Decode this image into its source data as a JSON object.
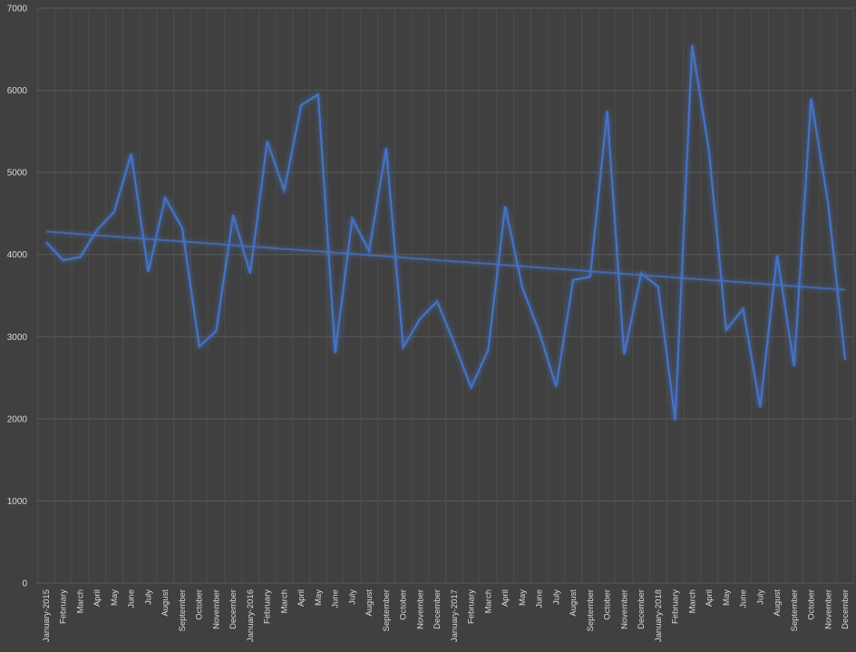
{
  "chart_data": {
    "type": "line",
    "title": "",
    "xlabel": "",
    "ylabel": "",
    "ylim": [
      0,
      7000
    ],
    "yticks": [
      0,
      1000,
      2000,
      3000,
      4000,
      5000,
      6000,
      7000
    ],
    "grid": "vertical and horizontal",
    "legend": "none",
    "categories": [
      "January-2015",
      "February",
      "March",
      "April",
      "May",
      "June",
      "July",
      "August",
      "September",
      "October",
      "November",
      "December",
      "January-2016",
      "February",
      "March",
      "April",
      "May",
      "June",
      "July",
      "August",
      "September",
      "October",
      "November",
      "December",
      "January-2017",
      "February",
      "March",
      "April",
      "May",
      "June",
      "July",
      "August",
      "September",
      "October",
      "November",
      "December",
      "January-2018",
      "February",
      "March",
      "April",
      "May",
      "June",
      "July",
      "August",
      "September",
      "October",
      "November",
      "December"
    ],
    "series": [
      {
        "values": [
          4150,
          3930,
          3970,
          4300,
          4520,
          5230,
          3790,
          4690,
          4320,
          2880,
          3070,
          4480,
          3770,
          5380,
          4780,
          5820,
          5950,
          2800,
          4440,
          4040,
          5300,
          2870,
          3220,
          3430,
          2920,
          2380,
          2840,
          4590,
          3600,
          3060,
          2390,
          3690,
          3730,
          5750,
          2780,
          3770,
          3610,
          1980,
          6550,
          5250,
          3080,
          3340,
          2140,
          3990,
          2640,
          5900,
          4620,
          2720
        ],
        "color": "#4472c4"
      }
    ],
    "trendline": {
      "type": "linear",
      "color": "#4472c4",
      "start": 4280,
      "end": 3570
    }
  }
}
